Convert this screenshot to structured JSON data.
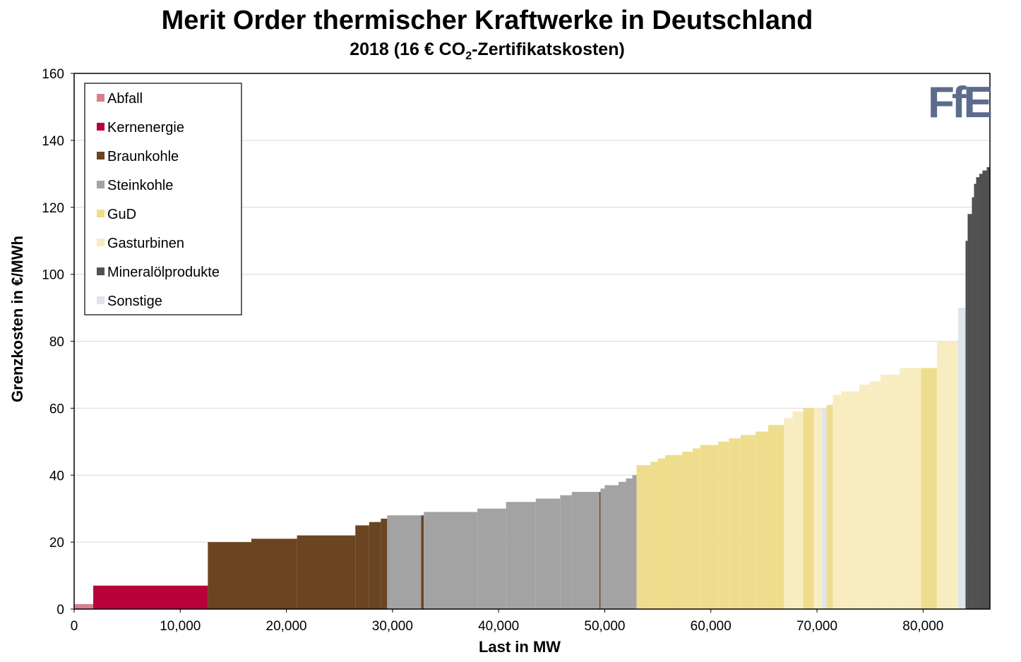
{
  "chart_data": {
    "type": "area",
    "title": "Merit Order thermischer Kraftwerke in Deutschland",
    "subtitle_prefix": "2018 (16 € CO",
    "subtitle_sub": "2",
    "subtitle_suffix": "-Zertifikatskosten)",
    "xlabel": "Last in MW",
    "ylabel": "Grenzkosten in €/MWh",
    "xlim": [
      0,
      86300
    ],
    "ylim": [
      0,
      160
    ],
    "x_ticks": [
      {
        "value": 0,
        "label": "0"
      },
      {
        "value": 10000,
        "label": "10,000"
      },
      {
        "value": 20000,
        "label": "20,000"
      },
      {
        "value": 30000,
        "label": "30,000"
      },
      {
        "value": 40000,
        "label": "40,000"
      },
      {
        "value": 50000,
        "label": "50,000"
      },
      {
        "value": 60000,
        "label": "60,000"
      },
      {
        "value": 70000,
        "label": "70,000"
      },
      {
        "value": 80000,
        "label": "80,000"
      }
    ],
    "y_ticks": [
      0,
      20,
      40,
      60,
      80,
      100,
      120,
      140,
      160
    ],
    "grid": "horizontal",
    "legend_position": "top-left",
    "legend": [
      {
        "name": "Abfall",
        "color": "#d9808c"
      },
      {
        "name": "Kernenergie",
        "color": "#b8003a"
      },
      {
        "name": "Braunkohle",
        "color": "#6b4422"
      },
      {
        "name": "Steinkohle",
        "color": "#a3a3a3"
      },
      {
        "name": "GuD",
        "color": "#efdd8e"
      },
      {
        "name": "Gasturbinen",
        "color": "#f8edc0"
      },
      {
        "name": "Mineralölprodukte",
        "color": "#505050"
      },
      {
        "name": "Sonstige",
        "color": "#dfe4ef"
      }
    ],
    "blocks": [
      {
        "fuel": "Abfall",
        "x0": 0,
        "x1": 1800,
        "y": 1.5
      },
      {
        "fuel": "Kernenergie",
        "x0": 1800,
        "x1": 12600,
        "y": 7
      },
      {
        "fuel": "Braunkohle",
        "x0": 12600,
        "x1": 16700,
        "y": 20
      },
      {
        "fuel": "Braunkohle",
        "x0": 16700,
        "x1": 21000,
        "y": 21
      },
      {
        "fuel": "Braunkohle",
        "x0": 21000,
        "x1": 26500,
        "y": 22
      },
      {
        "fuel": "Braunkohle",
        "x0": 26500,
        "x1": 27800,
        "y": 25
      },
      {
        "fuel": "Braunkohle",
        "x0": 27800,
        "x1": 28900,
        "y": 26
      },
      {
        "fuel": "Braunkohle",
        "x0": 28900,
        "x1": 29500,
        "y": 27
      },
      {
        "fuel": "Steinkohle",
        "x0": 29500,
        "x1": 32700,
        "y": 28
      },
      {
        "fuel": "Braunkohle",
        "x0": 32700,
        "x1": 32950,
        "y": 28
      },
      {
        "fuel": "Steinkohle",
        "x0": 32950,
        "x1": 38000,
        "y": 29
      },
      {
        "fuel": "Steinkohle",
        "x0": 38000,
        "x1": 40700,
        "y": 30
      },
      {
        "fuel": "Steinkohle",
        "x0": 40700,
        "x1": 43500,
        "y": 32
      },
      {
        "fuel": "Steinkohle",
        "x0": 43500,
        "x1": 45800,
        "y": 33
      },
      {
        "fuel": "Steinkohle",
        "x0": 45800,
        "x1": 46900,
        "y": 34
      },
      {
        "fuel": "Steinkohle",
        "x0": 46900,
        "x1": 49500,
        "y": 35
      },
      {
        "fuel": "Braunkohle",
        "x0": 49500,
        "x1": 49600,
        "y": 35
      },
      {
        "fuel": "Steinkohle",
        "x0": 49600,
        "x1": 50000,
        "y": 36
      },
      {
        "fuel": "Steinkohle",
        "x0": 50000,
        "x1": 51300,
        "y": 37
      },
      {
        "fuel": "Steinkohle",
        "x0": 51300,
        "x1": 52000,
        "y": 38
      },
      {
        "fuel": "Steinkohle",
        "x0": 52000,
        "x1": 52600,
        "y": 39
      },
      {
        "fuel": "Steinkohle",
        "x0": 52600,
        "x1": 53000,
        "y": 40
      },
      {
        "fuel": "GuD",
        "x0": 53000,
        "x1": 54300,
        "y": 43
      },
      {
        "fuel": "GuD",
        "x0": 54300,
        "x1": 55000,
        "y": 44
      },
      {
        "fuel": "GuD",
        "x0": 55000,
        "x1": 55700,
        "y": 45
      },
      {
        "fuel": "GuD",
        "x0": 55700,
        "x1": 57300,
        "y": 46
      },
      {
        "fuel": "GuD",
        "x0": 57300,
        "x1": 58300,
        "y": 47
      },
      {
        "fuel": "GuD",
        "x0": 58300,
        "x1": 59000,
        "y": 48
      },
      {
        "fuel": "GuD",
        "x0": 59000,
        "x1": 60700,
        "y": 49
      },
      {
        "fuel": "GuD",
        "x0": 60700,
        "x1": 61700,
        "y": 50
      },
      {
        "fuel": "GuD",
        "x0": 61700,
        "x1": 62800,
        "y": 51
      },
      {
        "fuel": "GuD",
        "x0": 62800,
        "x1": 64200,
        "y": 52
      },
      {
        "fuel": "GuD",
        "x0": 64200,
        "x1": 65400,
        "y": 53
      },
      {
        "fuel": "GuD",
        "x0": 65400,
        "x1": 66900,
        "y": 55
      },
      {
        "fuel": "Gasturbinen",
        "x0": 66900,
        "x1": 67700,
        "y": 57
      },
      {
        "fuel": "Gasturbinen",
        "x0": 67700,
        "x1": 68700,
        "y": 59
      },
      {
        "fuel": "GuD",
        "x0": 68700,
        "x1": 69700,
        "y": 60
      },
      {
        "fuel": "Gasturbinen",
        "x0": 69700,
        "x1": 70500,
        "y": 60
      },
      {
        "fuel": "Sonstige",
        "x0": 70500,
        "x1": 70900,
        "y": 60
      },
      {
        "fuel": "GuD",
        "x0": 70900,
        "x1": 71500,
        "y": 61
      },
      {
        "fuel": "Gasturbinen",
        "x0": 71500,
        "x1": 72300,
        "y": 64
      },
      {
        "fuel": "Gasturbinen",
        "x0": 72300,
        "x1": 74000,
        "y": 65
      },
      {
        "fuel": "Gasturbinen",
        "x0": 74000,
        "x1": 75000,
        "y": 67
      },
      {
        "fuel": "Gasturbinen",
        "x0": 75000,
        "x1": 76000,
        "y": 68
      },
      {
        "fuel": "Gasturbinen",
        "x0": 76000,
        "x1": 77800,
        "y": 70
      },
      {
        "fuel": "Gasturbinen",
        "x0": 77800,
        "x1": 79800,
        "y": 72
      },
      {
        "fuel": "GuD",
        "x0": 79800,
        "x1": 81300,
        "y": 72
      },
      {
        "fuel": "Gasturbinen",
        "x0": 81300,
        "x1": 83300,
        "y": 80
      },
      {
        "fuel": "Sonstige",
        "x0": 83300,
        "x1": 84000,
        "y": 90
      },
      {
        "fuel": "Mineralölprodukte",
        "x0": 84000,
        "x1": 84200,
        "y": 110
      },
      {
        "fuel": "Mineralölprodukte",
        "x0": 84200,
        "x1": 84600,
        "y": 118
      },
      {
        "fuel": "Mineralölprodukte",
        "x0": 84600,
        "x1": 84800,
        "y": 123
      },
      {
        "fuel": "Mineralölprodukte",
        "x0": 84800,
        "x1": 85000,
        "y": 127
      },
      {
        "fuel": "Mineralölprodukte",
        "x0": 85000,
        "x1": 85300,
        "y": 129
      },
      {
        "fuel": "Mineralölprodukte",
        "x0": 85300,
        "x1": 85600,
        "y": 130
      },
      {
        "fuel": "Mineralölprodukte",
        "x0": 85600,
        "x1": 86000,
        "y": 131
      },
      {
        "fuel": "Mineralölprodukte",
        "x0": 86000,
        "x1": 86300,
        "y": 132
      }
    ]
  },
  "logo": {
    "text": "FfE",
    "color": "#5d6c8c"
  }
}
